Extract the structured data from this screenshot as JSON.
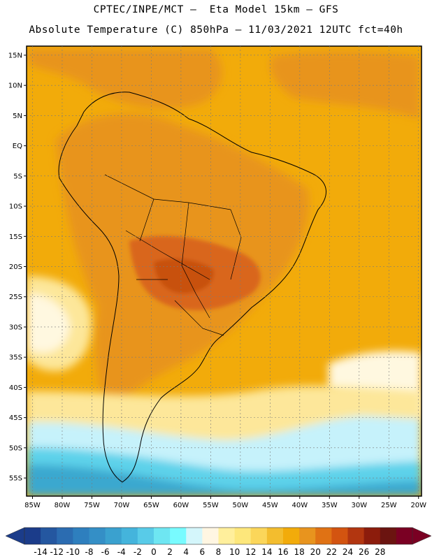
{
  "header": {
    "line1": "CPTEC/INPE/MCT –  Eta Model 15km – GFS",
    "line2": "Absolute Temperature (C) 850hPa – 11/03/2021 12UTC fct=40h"
  },
  "map": {
    "lat_labels": [
      "15N",
      "10N",
      "5N",
      "EQ",
      "5S",
      "10S",
      "15S",
      "20S",
      "25S",
      "30S",
      "35S",
      "40S",
      "45S",
      "50S",
      "55S"
    ],
    "lat_values": [
      15,
      10,
      5,
      0,
      -5,
      -10,
      -15,
      -20,
      -25,
      -30,
      -35,
      -40,
      -45,
      -50,
      -55
    ],
    "lon_labels": [
      "85W",
      "80W",
      "75W",
      "70W",
      "65W",
      "60W",
      "55W",
      "50W",
      "45W",
      "40W",
      "35W",
      "30W",
      "25W",
      "20W"
    ],
    "lon_values": [
      -85,
      -80,
      -75,
      -70,
      -65,
      -60,
      -55,
      -50,
      -45,
      -40,
      -35,
      -30,
      -25,
      -20
    ],
    "lon_range": [
      -86,
      -19.5
    ],
    "lat_range": [
      -58,
      16.5
    ],
    "colors": {
      "ocean_base": "#f2ab0a",
      "warm_band": "#e8941e",
      "hot": "#d9661a",
      "hottest": "#c8510f",
      "pale_yellow": "#fde79a",
      "cream": "#fff8e0",
      "light_cyan": "#c6f2fb",
      "mid_cyan": "#5dd2ea",
      "teal": "#3aa8cf",
      "border": "#000000",
      "grid": "#7a7a7a"
    }
  },
  "colorbar": {
    "labels": [
      "-14",
      "-12",
      "-10",
      "-8",
      "-6",
      "-4",
      "-2",
      "0",
      "2",
      "4",
      "6",
      "8",
      "10",
      "12",
      "14",
      "16",
      "18",
      "20",
      "22",
      "24",
      "26",
      "28"
    ],
    "colors": [
      "#1b3c8a",
      "#2457a0",
      "#2b6cb1",
      "#2e7fbe",
      "#348fc6",
      "#3aa1cf",
      "#44b4dc",
      "#58cbe8",
      "#6ee6f2",
      "#78fbff",
      "#d4f6fb",
      "#fff6e2",
      "#ffef9c",
      "#fde77b",
      "#fbd65a",
      "#f3bd2e",
      "#f2ab0a",
      "#e8941e",
      "#e07214",
      "#d35410",
      "#b23610",
      "#8c1c0c",
      "#6b1410",
      "#7a0023"
    ],
    "end_low": "#1b3c8a",
    "end_high": "#7a0023"
  }
}
